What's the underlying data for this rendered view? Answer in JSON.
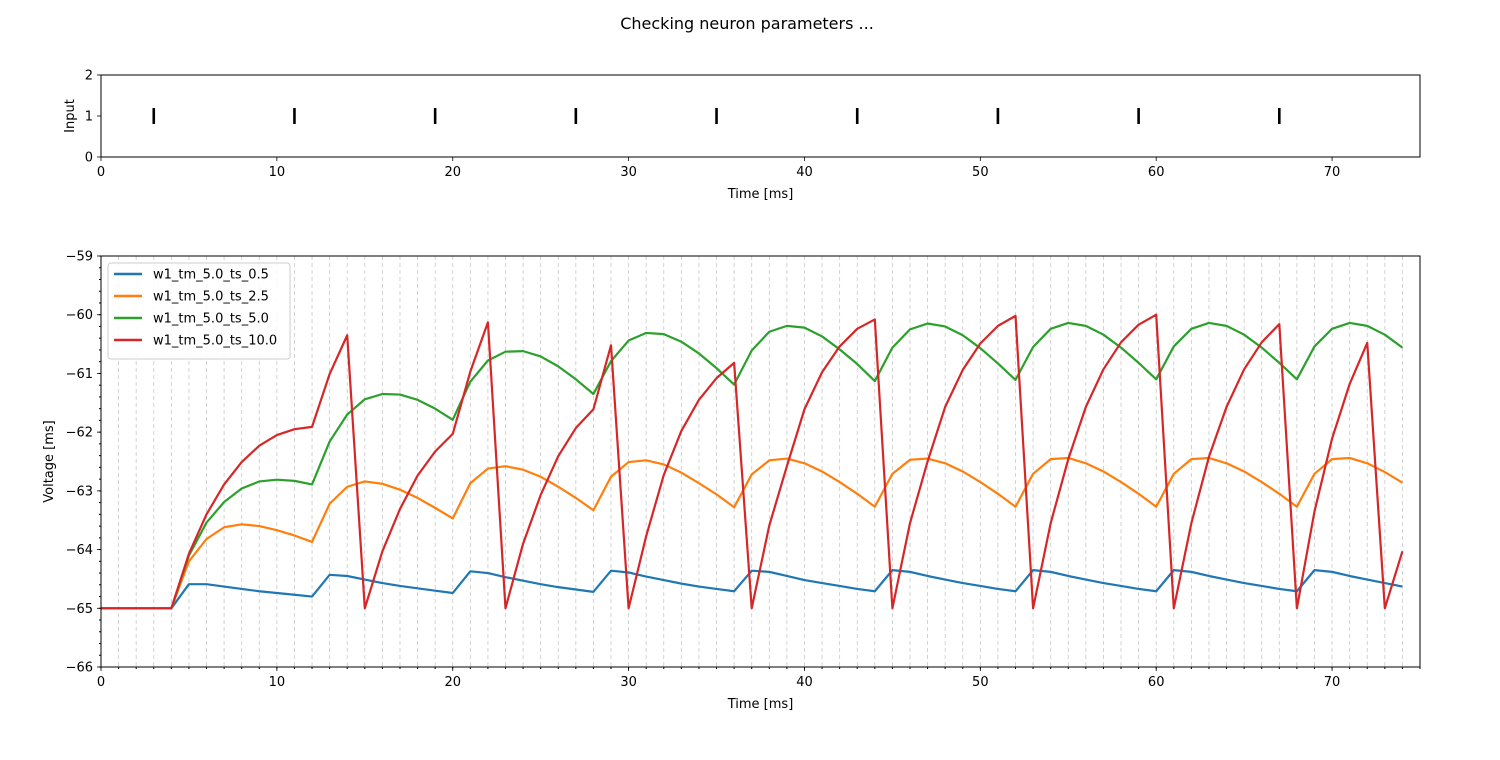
{
  "figure": {
    "title": "Checking neuron parameters ..."
  },
  "chart_data": [
    {
      "type": "scatter",
      "marker": "vertical-line",
      "title": "",
      "xlabel": "Time [ms]",
      "ylabel": "Input",
      "xlim": [
        0,
        75
      ],
      "ylim": [
        0,
        2
      ],
      "xticks": [
        0,
        10,
        20,
        30,
        40,
        50,
        60,
        70
      ],
      "yticks": [
        0,
        1,
        2
      ],
      "grid": false,
      "series": [
        {
          "x": [
            3,
            11,
            19,
            27,
            35,
            43,
            51,
            59,
            67
          ],
          "y": [
            1,
            1,
            1,
            1,
            1,
            1,
            1,
            1,
            1
          ]
        }
      ]
    },
    {
      "type": "line",
      "title": "",
      "xlabel": "Time [ms]",
      "ylabel": "Voltage [ms]",
      "xlim": [
        0,
        75
      ],
      "ylim": [
        -66,
        -59
      ],
      "xticks": [
        0,
        10,
        20,
        30,
        40,
        50,
        60,
        70
      ],
      "yticks": [
        -66,
        -65,
        -64,
        -63,
        -62,
        -61,
        -60,
        -59
      ],
      "grid": "vertical dashed at every 1 ms",
      "legend": "top-left",
      "x": [
        0,
        1,
        2,
        3,
        4,
        5,
        6,
        7,
        8,
        9,
        10,
        11,
        12,
        13,
        14,
        15,
        16,
        17,
        18,
        19,
        20,
        21,
        22,
        23,
        24,
        25,
        26,
        27,
        28,
        29,
        30,
        31,
        32,
        33,
        34,
        35,
        36,
        37,
        38,
        39,
        40,
        41,
        42,
        43,
        44,
        45,
        46,
        47,
        48,
        49,
        50,
        51,
        52,
        53,
        54,
        55,
        56,
        57,
        58,
        59,
        60,
        61,
        62,
        63,
        64,
        65,
        66,
        67,
        68,
        69,
        70,
        71,
        72,
        73,
        74
      ],
      "series": [
        {
          "name": "w1_tm_5.0_ts_0.5",
          "color": "#1f77b4",
          "values": [
            -65,
            -65,
            -65,
            -65,
            -65,
            -64.59,
            -64.59,
            -64.63,
            -64.67,
            -64.71,
            -64.74,
            -64.77,
            -64.8,
            -64.43,
            -64.45,
            -64.51,
            -64.57,
            -64.62,
            -64.66,
            -64.7,
            -64.74,
            -64.37,
            -64.4,
            -64.47,
            -64.53,
            -64.59,
            -64.64,
            -64.68,
            -64.72,
            -64.36,
            -64.39,
            -64.46,
            -64.52,
            -64.58,
            -64.63,
            -64.67,
            -64.71,
            -64.36,
            -64.38,
            -64.45,
            -64.52,
            -64.57,
            -64.62,
            -64.67,
            -64.71,
            -64.35,
            -64.38,
            -64.45,
            -64.51,
            -64.57,
            -64.62,
            -64.67,
            -64.71,
            -64.35,
            -64.38,
            -64.45,
            -64.51,
            -64.57,
            -64.62,
            -64.67,
            -64.71,
            -64.35,
            -64.38,
            -64.45,
            -64.51,
            -64.57,
            -64.62,
            -64.67,
            -64.71,
            -64.35,
            -64.38,
            -64.45,
            -64.51,
            -64.57,
            -64.63
          ]
        },
        {
          "name": "w1_tm_5.0_ts_2.5",
          "color": "#ff7f0e",
          "values": [
            -65,
            -65,
            -65,
            -65,
            -65,
            -64.2,
            -63.82,
            -63.62,
            -63.57,
            -63.6,
            -63.67,
            -63.76,
            -63.87,
            -63.22,
            -62.93,
            -62.84,
            -62.88,
            -62.98,
            -63.12,
            -63.29,
            -63.47,
            -62.87,
            -62.62,
            -62.58,
            -62.64,
            -62.76,
            -62.93,
            -63.12,
            -63.33,
            -62.76,
            -62.51,
            -62.48,
            -62.55,
            -62.69,
            -62.87,
            -63.06,
            -63.28,
            -62.72,
            -62.48,
            -62.45,
            -62.53,
            -62.67,
            -62.85,
            -63.05,
            -63.27,
            -62.71,
            -62.47,
            -62.45,
            -62.53,
            -62.67,
            -62.85,
            -63.05,
            -63.27,
            -62.71,
            -62.46,
            -62.44,
            -62.53,
            -62.67,
            -62.85,
            -63.05,
            -63.27,
            -62.71,
            -62.46,
            -62.44,
            -62.53,
            -62.67,
            -62.85,
            -63.05,
            -63.27,
            -62.71,
            -62.46,
            -62.44,
            -62.53,
            -62.68,
            -62.86
          ]
        },
        {
          "name": "w1_tm_5.0_ts_5.0",
          "color": "#2ca02c",
          "values": [
            -65,
            -65,
            -65,
            -65,
            -65,
            -64.1,
            -63.54,
            -63.19,
            -62.96,
            -62.84,
            -62.81,
            -62.83,
            -62.89,
            -62.16,
            -61.7,
            -61.44,
            -61.35,
            -61.36,
            -61.45,
            -61.6,
            -61.79,
            -61.14,
            -60.78,
            -60.63,
            -60.62,
            -60.71,
            -60.88,
            -61.1,
            -61.35,
            -60.79,
            -60.44,
            -60.31,
            -60.33,
            -60.46,
            -60.66,
            -60.91,
            -61.19,
            -60.61,
            -60.29,
            -60.19,
            -60.22,
            -60.37,
            -60.59,
            -60.84,
            -61.13,
            -60.56,
            -60.25,
            -60.15,
            -60.2,
            -60.35,
            -60.57,
            -60.83,
            -61.11,
            -60.55,
            -60.24,
            -60.14,
            -60.19,
            -60.34,
            -60.56,
            -60.82,
            -61.1,
            -60.54,
            -60.24,
            -60.14,
            -60.19,
            -60.34,
            -60.56,
            -60.82,
            -61.1,
            -60.54,
            -60.24,
            -60.14,
            -60.19,
            -60.34,
            -60.56
          ]
        },
        {
          "name": "w1_tm_5.0_ts_10.0",
          "color": "#d62728",
          "values": [
            -65,
            -65,
            -65,
            -65,
            -65,
            -64.07,
            -63.4,
            -62.89,
            -62.51,
            -62.23,
            -62.05,
            -61.95,
            -61.91,
            -61.01,
            -60.35,
            -65,
            -64.03,
            -63.31,
            -62.74,
            -62.33,
            -62.03,
            -60.97,
            -60.13,
            -65,
            -63.9,
            -63.07,
            -62.41,
            -61.93,
            -61.61,
            -60.52,
            -65,
            -63.77,
            -62.73,
            -61.98,
            -61.45,
            -61.08,
            -60.82,
            -65,
            -63.59,
            -62.58,
            -61.61,
            -60.98,
            -60.54,
            -60.24,
            -60.08,
            -65,
            -63.55,
            -62.5,
            -61.57,
            -60.94,
            -60.49,
            -60.19,
            -60.02,
            -65,
            -63.55,
            -62.46,
            -61.57,
            -60.93,
            -60.47,
            -60.17,
            -60,
            -65,
            -63.55,
            -62.42,
            -61.57,
            -60.93,
            -60.47,
            -60.16,
            -65,
            -63.35,
            -62.11,
            -61.18,
            -60.48,
            -65,
            -64.03
          ]
        }
      ]
    }
  ]
}
